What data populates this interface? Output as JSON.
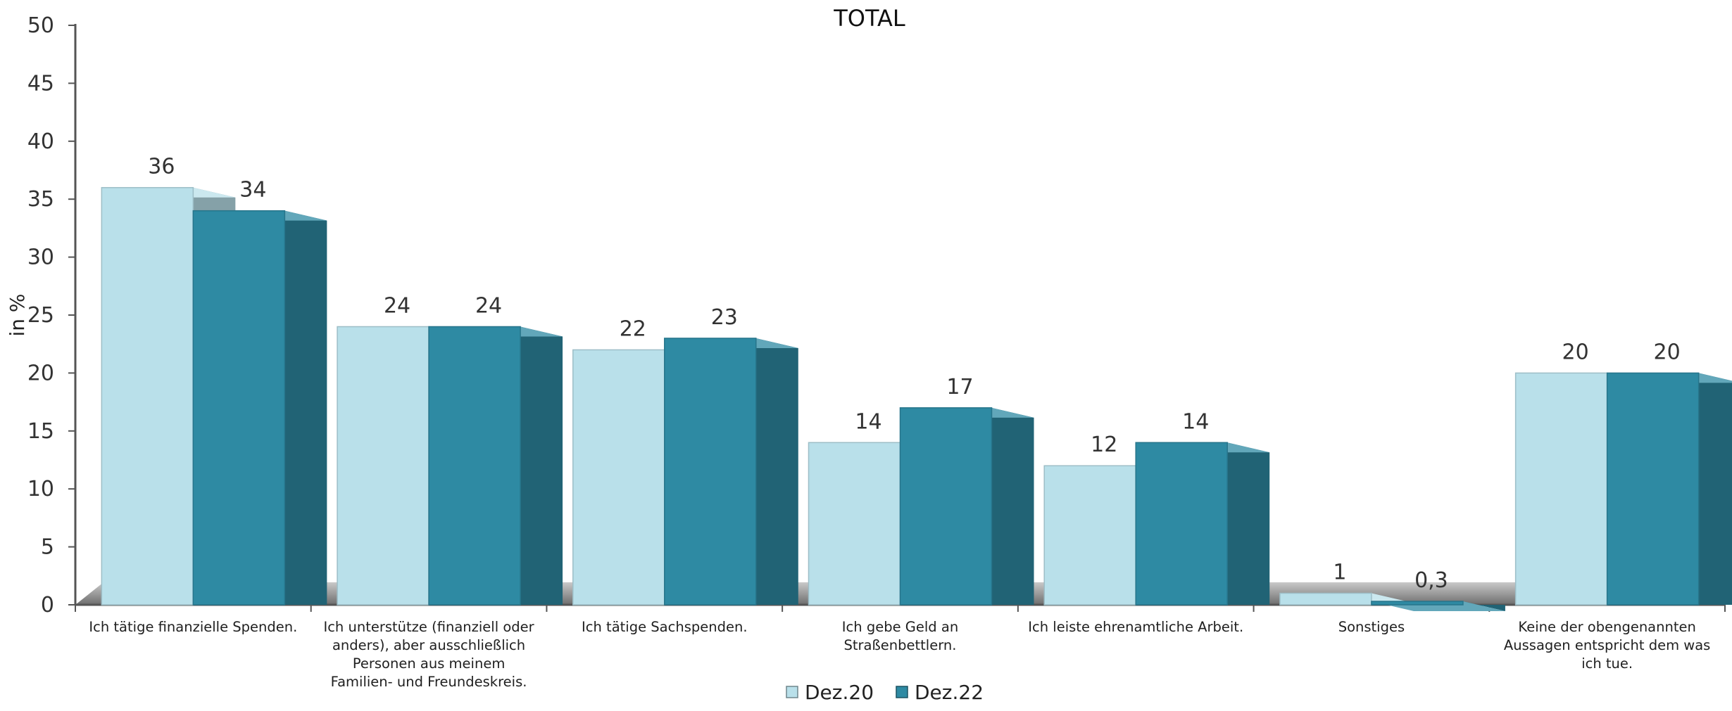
{
  "chart_data": {
    "type": "bar",
    "title": "TOTAL",
    "xlabel": "",
    "ylabel": "in %",
    "ylim": [
      0,
      50
    ],
    "yticks": [
      "0",
      "5",
      "10",
      "15",
      "20",
      "25",
      "30",
      "35",
      "40",
      "45",
      "50"
    ],
    "grid": false,
    "legend_position": "bottom",
    "categories": [
      [
        "Ich tätige finanzielle Spenden."
      ],
      [
        "Ich unterstütze (finanziell oder",
        "anders), aber ausschließlich",
        "Personen aus meinem",
        "Familien- und Freundeskreis."
      ],
      [
        "Ich tätige Sachspenden."
      ],
      [
        "Ich gebe Geld an",
        "Straßenbettlern."
      ],
      [
        "Ich leiste ehrenamtliche Arbeit."
      ],
      [
        "Sonstiges"
      ],
      [
        "Keine der obengenannten",
        "Aussagen entspricht dem was",
        "ich tue."
      ]
    ],
    "series": [
      {
        "name": "Dez.20",
        "color": "#b9e0ea",
        "values": [
          36,
          24,
          22,
          14,
          12,
          1,
          20
        ],
        "labels": [
          "36",
          "24",
          "22",
          "14",
          "12",
          "1",
          "20"
        ]
      },
      {
        "name": "Dez.22",
        "color": "#2e8aa3",
        "values": [
          34,
          24,
          23,
          17,
          14,
          0.3,
          20
        ],
        "labels": [
          "34",
          "24",
          "23",
          "17",
          "14",
          "0,3",
          "20"
        ]
      }
    ]
  }
}
